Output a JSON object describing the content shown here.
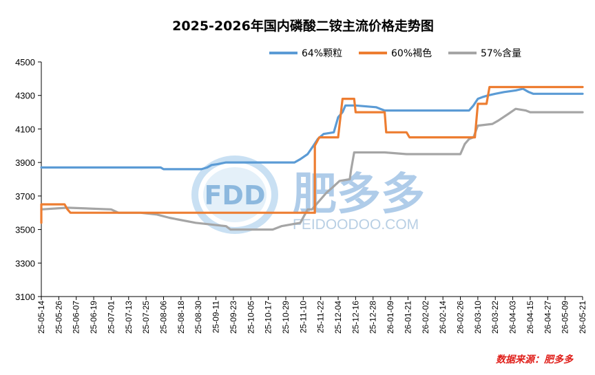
{
  "chart_data": {
    "type": "line",
    "title": "2025-2026年国内磷酸二铵主流价格走势图",
    "source_note": "数据来源：肥多多",
    "watermark": {
      "logo_text": "FDD",
      "brand_cn": "肥多多",
      "brand_url": "FEIDOODOO.COM"
    },
    "xlabel": "",
    "ylabel": "",
    "ylim": [
      3100,
      4500
    ],
    "yticks": [
      3100,
      3300,
      3500,
      3700,
      3900,
      4100,
      4300,
      4500
    ],
    "grid": false,
    "legend_position": "top-right",
    "x_ticks": [
      "25-05-14",
      "25-05-26",
      "25-06-07",
      "25-06-19",
      "25-07-01",
      "25-07-13",
      "25-07-25",
      "25-08-06",
      "25-08-18",
      "25-08-30",
      "25-09-11",
      "25-09-23",
      "25-10-05",
      "25-10-17",
      "25-10-29",
      "25-11-10",
      "25-11-22",
      "25-12-04",
      "25-12-16",
      "25-12-28",
      "26-01-09",
      "26-01-21",
      "26-02-02",
      "26-02-14",
      "26-02-26",
      "26-03-10",
      "26-03-22",
      "26-04-03",
      "26-04-15",
      "26-04-27",
      "26-05-09",
      "26-05-21"
    ],
    "series": [
      {
        "name": "64%颗粒",
        "color": "#5b9bd5",
        "points": [
          [
            "25-05-14",
            3870
          ],
          [
            "25-08-04",
            3870
          ],
          [
            "25-08-06",
            3860
          ],
          [
            "25-09-01",
            3860
          ],
          [
            "25-09-05",
            3870
          ],
          [
            "25-09-08",
            3885
          ],
          [
            "25-09-12",
            3890
          ],
          [
            "25-09-18",
            3900
          ],
          [
            "25-11-04",
            3900
          ],
          [
            "25-11-08",
            3920
          ],
          [
            "25-11-13",
            3950
          ],
          [
            "25-11-17",
            4000
          ],
          [
            "25-11-20",
            4040
          ],
          [
            "25-11-24",
            4070
          ],
          [
            "25-12-01",
            4080
          ],
          [
            "25-12-04",
            4170
          ],
          [
            "25-12-07",
            4200
          ],
          [
            "25-12-09",
            4240
          ],
          [
            "25-12-16",
            4240
          ],
          [
            "25-12-30",
            4230
          ],
          [
            "26-01-02",
            4220
          ],
          [
            "26-01-05",
            4210
          ],
          [
            "26-03-04",
            4210
          ],
          [
            "26-03-07",
            4240
          ],
          [
            "26-03-10",
            4280
          ],
          [
            "26-03-13",
            4290
          ],
          [
            "26-03-17",
            4300
          ],
          [
            "26-03-22",
            4310
          ],
          [
            "26-03-28",
            4320
          ],
          [
            "26-04-05",
            4330
          ],
          [
            "26-04-10",
            4340
          ],
          [
            "26-04-14",
            4320
          ],
          [
            "26-04-17",
            4310
          ],
          [
            "26-05-21",
            4310
          ]
        ]
      },
      {
        "name": "60%褐色",
        "color": "#ed7d31",
        "points": [
          [
            "25-05-14",
            3540
          ],
          [
            "25-05-14",
            3650
          ],
          [
            "25-05-22",
            3650
          ],
          [
            "25-05-30",
            3650
          ],
          [
            "25-06-01",
            3620
          ],
          [
            "25-06-03",
            3600
          ],
          [
            "25-11-18",
            3600
          ],
          [
            "25-11-18",
            4000
          ],
          [
            "25-11-21",
            4050
          ],
          [
            "25-12-04",
            4050
          ],
          [
            "25-12-07",
            4280
          ],
          [
            "25-12-15",
            4280
          ],
          [
            "25-12-16",
            4200
          ],
          [
            "26-01-05",
            4200
          ],
          [
            "26-01-06",
            4080
          ],
          [
            "26-01-20",
            4080
          ],
          [
            "26-01-22",
            4050
          ],
          [
            "26-03-08",
            4050
          ],
          [
            "26-03-10",
            4250
          ],
          [
            "26-03-16",
            4250
          ],
          [
            "26-03-18",
            4350
          ],
          [
            "26-05-21",
            4350
          ]
        ]
      },
      {
        "name": "57%含量",
        "color": "#a5a5a5",
        "points": [
          [
            "25-05-14",
            3620
          ],
          [
            "25-06-01",
            3630
          ],
          [
            "25-07-01",
            3620
          ],
          [
            "25-07-06",
            3600
          ],
          [
            "25-07-21",
            3600
          ],
          [
            "25-08-01",
            3590
          ],
          [
            "25-08-10",
            3570
          ],
          [
            "25-08-16",
            3560
          ],
          [
            "25-08-28",
            3540
          ],
          [
            "25-09-18",
            3520
          ],
          [
            "25-09-21",
            3500
          ],
          [
            "25-10-08",
            3500
          ],
          [
            "25-10-20",
            3500
          ],
          [
            "25-10-26",
            3520
          ],
          [
            "25-11-08",
            3540
          ],
          [
            "25-11-13",
            3620
          ],
          [
            "25-11-16",
            3620
          ],
          [
            "25-11-26",
            3720
          ],
          [
            "25-11-30",
            3750
          ],
          [
            "25-12-05",
            3790
          ],
          [
            "25-12-12",
            3800
          ],
          [
            "25-12-13",
            3860
          ],
          [
            "25-12-15",
            3960
          ],
          [
            "26-01-05",
            3960
          ],
          [
            "26-01-20",
            3950
          ],
          [
            "26-02-26",
            3950
          ],
          [
            "26-03-01",
            4010
          ],
          [
            "26-03-04",
            4040
          ],
          [
            "26-03-07",
            4050
          ],
          [
            "26-03-10",
            4120
          ],
          [
            "26-03-20",
            4130
          ],
          [
            "26-03-24",
            4150
          ],
          [
            "26-03-31",
            4190
          ],
          [
            "26-04-05",
            4220
          ],
          [
            "26-04-12",
            4210
          ],
          [
            "26-04-15",
            4200
          ],
          [
            "26-05-21",
            4200
          ]
        ]
      }
    ]
  }
}
